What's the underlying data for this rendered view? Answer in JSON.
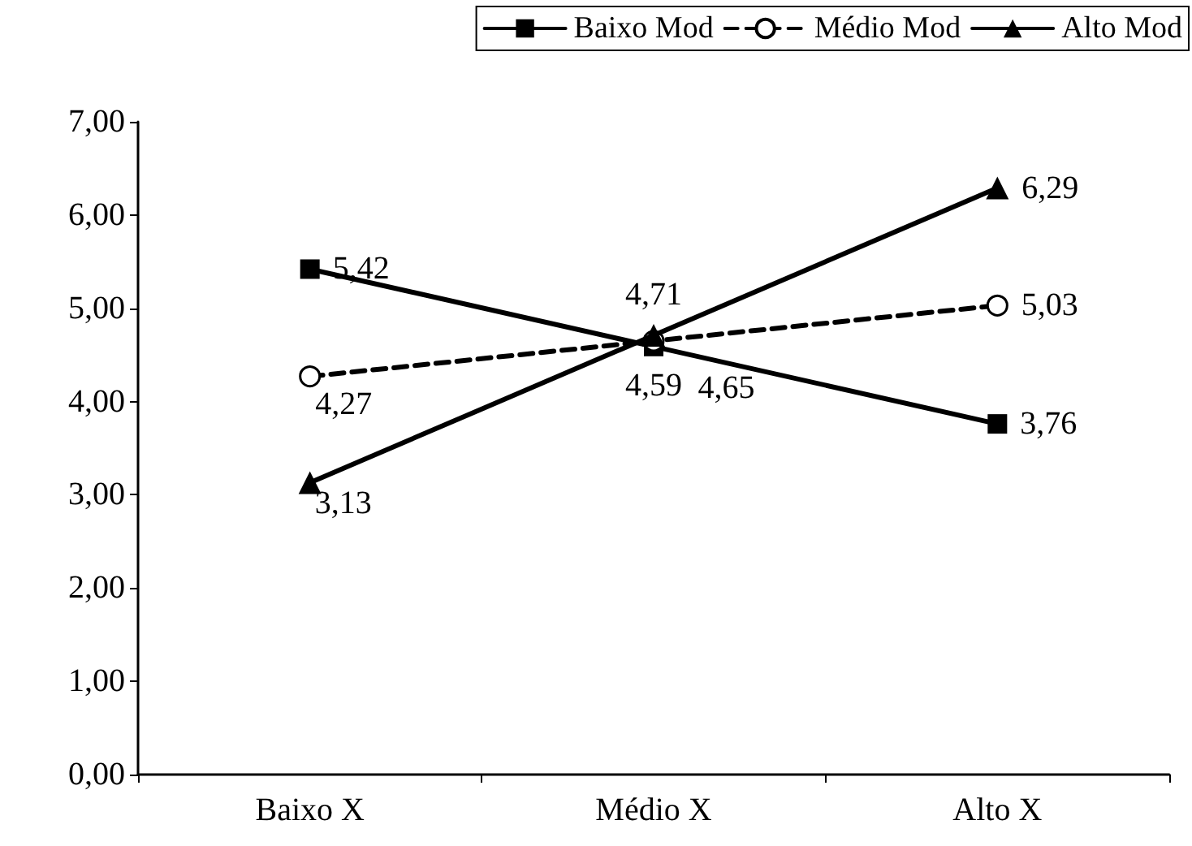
{
  "chart_data": {
    "type": "line",
    "categories": [
      "Baixo X",
      "Médio X",
      "Alto X"
    ],
    "series": [
      {
        "name": "Baixo Mod",
        "color": "#000000",
        "marker": "square",
        "line_style": "solid",
        "values": [
          5.42,
          4.59,
          3.76
        ],
        "value_labels": [
          "5,42",
          "4,59",
          "3,76"
        ]
      },
      {
        "name": "Médio Mod",
        "color": "#000000",
        "marker": "circle",
        "line_style": "dashed",
        "values": [
          4.27,
          4.65,
          5.03
        ],
        "value_labels": [
          "4,27",
          "4,65",
          "5,03"
        ]
      },
      {
        "name": "Alto Mod",
        "color": "#000000",
        "marker": "triangle",
        "line_style": "solid",
        "values": [
          3.13,
          4.71,
          6.29
        ],
        "value_labels": [
          "3,13",
          "4,71",
          "6,29"
        ]
      }
    ],
    "ylim": [
      0,
      7
    ],
    "yticks": [
      {
        "value": 0,
        "label": "0,00"
      },
      {
        "value": 1,
        "label": "1,00"
      },
      {
        "value": 2,
        "label": "2,00"
      },
      {
        "value": 3,
        "label": "3,00"
      },
      {
        "value": 4,
        "label": "4,00"
      },
      {
        "value": 5,
        "label": "5,00"
      },
      {
        "value": 6,
        "label": "6,00"
      },
      {
        "value": 7,
        "label": "7,00"
      }
    ],
    "grid": false,
    "legend": "top right"
  }
}
